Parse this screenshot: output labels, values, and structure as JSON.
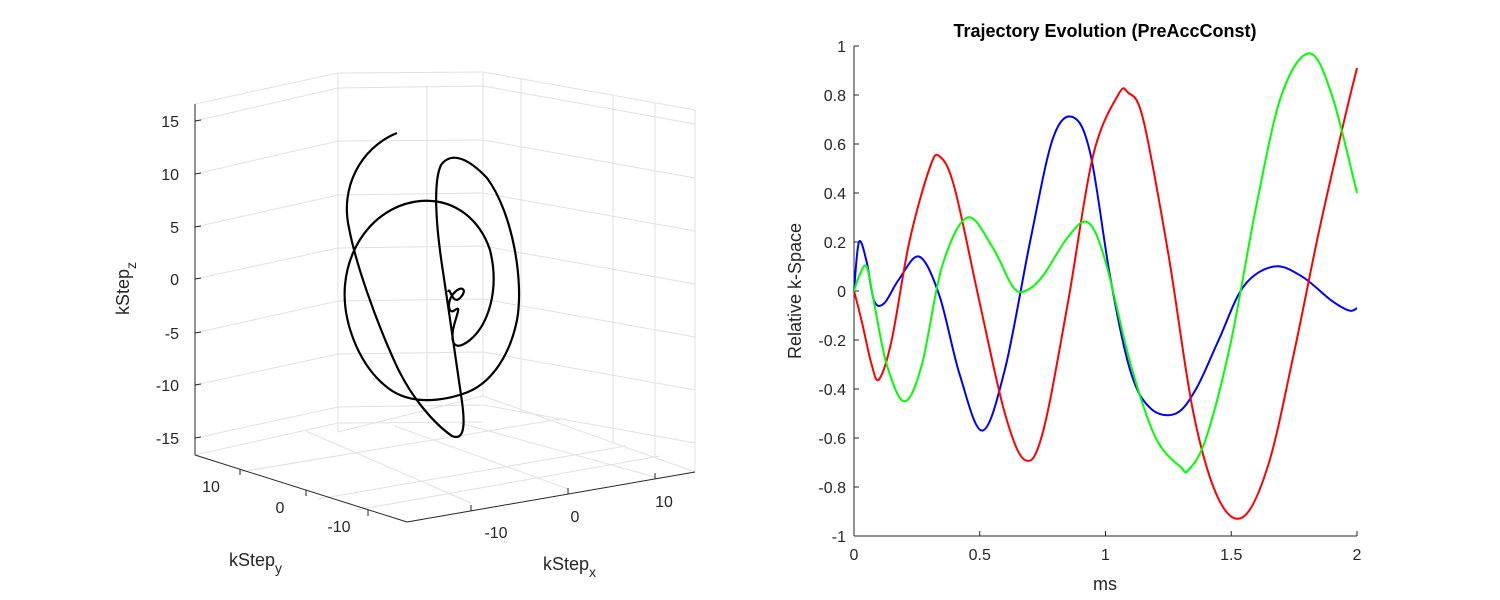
{
  "chart_data": [
    {
      "type": "line3d",
      "title": "",
      "xlabel": "kStep",
      "xlabel_sub": "x",
      "ylabel": "kStep",
      "ylabel_sub": "y",
      "zlabel": "kStep",
      "zlabel_sub": "z",
      "xticks": [
        "-10",
        "0",
        "10"
      ],
      "yticks": [
        "10",
        "0",
        "-10"
      ],
      "zticks": [
        "15",
        "10",
        "5",
        "0",
        "-5",
        "-10",
        "-15"
      ],
      "xlim": [
        -15,
        15
      ],
      "ylim": [
        -15,
        15
      ],
      "zlim": [
        -17,
        17
      ],
      "grid": true,
      "line_color": "#000000"
    },
    {
      "type": "line",
      "title": "Trajectory Evolution (PreAccConst)",
      "xlabel": "ms",
      "ylabel": "Relative k-Space",
      "xlim": [
        0,
        2
      ],
      "ylim": [
        -1,
        1
      ],
      "xticks": [
        "0",
        "0.5",
        "1",
        "1.5",
        "2"
      ],
      "yticks": [
        "1",
        "0.8",
        "0.6",
        "0.4",
        "0.2",
        "0",
        "-0.2",
        "-0.4",
        "-0.6",
        "-0.8",
        "-1"
      ],
      "grid": false,
      "series": [
        {
          "color": "#0000ff",
          "x": [
            0,
            0.02,
            0.05,
            0.08,
            0.12,
            0.18,
            0.26,
            0.34,
            0.42,
            0.51,
            0.6,
            0.7,
            0.79,
            0.87,
            0.94,
            1.02,
            1.1,
            1.18,
            1.28,
            1.36,
            1.45,
            1.55,
            1.67,
            1.78,
            1.9,
            1.97,
            2.0
          ],
          "y": [
            0,
            0.2,
            0.12,
            -0.04,
            -0.05,
            0.05,
            0.14,
            -0.02,
            -0.34,
            -0.57,
            -0.32,
            0.2,
            0.62,
            0.71,
            0.56,
            0.05,
            -0.33,
            -0.48,
            -0.5,
            -0.4,
            -0.2,
            0.02,
            0.1,
            0.06,
            -0.04,
            -0.08,
            -0.07
          ]
        },
        {
          "color": "#ff0000",
          "x": [
            0,
            0.03,
            0.07,
            0.1,
            0.15,
            0.22,
            0.3,
            0.34,
            0.4,
            0.5,
            0.6,
            0.68,
            0.75,
            0.85,
            0.95,
            1.05,
            1.09,
            1.15,
            1.25,
            1.35,
            1.45,
            1.55,
            1.65,
            1.75,
            1.85,
            1.95,
            2.0
          ],
          "y": [
            0,
            -0.12,
            -0.3,
            -0.36,
            -0.2,
            0.2,
            0.5,
            0.55,
            0.42,
            -0.05,
            -0.5,
            -0.69,
            -0.58,
            -0.05,
            0.55,
            0.8,
            0.81,
            0.7,
            0.15,
            -0.5,
            -0.85,
            -0.92,
            -0.7,
            -0.25,
            0.25,
            0.7,
            0.91
          ]
        },
        {
          "color": "#00ff00",
          "x": [
            0,
            0.02,
            0.05,
            0.08,
            0.13,
            0.2,
            0.27,
            0.35,
            0.45,
            0.55,
            0.63,
            0.68,
            0.75,
            0.85,
            0.93,
            1.0,
            1.1,
            1.2,
            1.3,
            1.33,
            1.4,
            1.5,
            1.6,
            1.7,
            1.81,
            1.9,
            2.0
          ],
          "y": [
            0,
            0.06,
            0.1,
            -0.05,
            -0.3,
            -0.45,
            -0.3,
            0.1,
            0.3,
            0.18,
            0.02,
            0.0,
            0.06,
            0.22,
            0.28,
            0.12,
            -0.3,
            -0.6,
            -0.72,
            -0.73,
            -0.6,
            -0.2,
            0.35,
            0.8,
            0.97,
            0.8,
            0.4
          ]
        }
      ]
    }
  ]
}
